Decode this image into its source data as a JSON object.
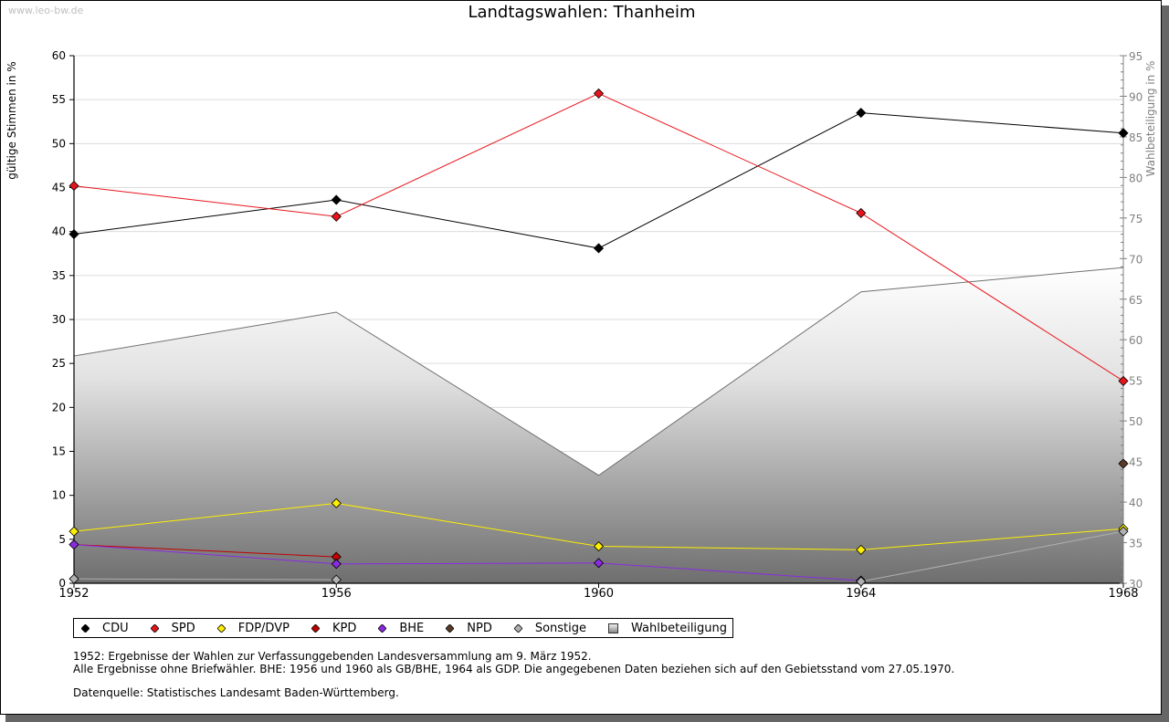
{
  "header": {
    "watermark": "www.leo-bw.de",
    "title": "Landtagswahlen: Thanheim"
  },
  "chart_data": {
    "type": "line",
    "title": "Landtagswahlen: Thanheim",
    "xlabel": "",
    "ylabel": "gültige Stimmen in %",
    "y2label": "Wahlbeteiligung in %",
    "x": [
      "1952",
      "1956",
      "1960",
      "1964",
      "1968"
    ],
    "ylim": [
      0,
      60
    ],
    "yticks": [
      "0",
      "5",
      "10",
      "15",
      "20",
      "25",
      "30",
      "35",
      "40",
      "45",
      "50",
      "55",
      "60"
    ],
    "y2lim": [
      30,
      95
    ],
    "y2ticks": [
      "30",
      "35",
      "40",
      "45",
      "50",
      "55",
      "60",
      "65",
      "70",
      "75",
      "80",
      "85",
      "90",
      "95"
    ],
    "grid": true,
    "legend_position": "bottom-left",
    "series": [
      {
        "name": "CDU",
        "color": "#000000",
        "values": [
          39.7,
          43.6,
          38.1,
          53.5,
          51.2
        ]
      },
      {
        "name": "SPD",
        "color": "#e8141c",
        "values": [
          45.2,
          41.7,
          55.7,
          42.1,
          23.0
        ]
      },
      {
        "name": "FDP/DVP",
        "color": "#ffef00",
        "values": [
          5.9,
          9.1,
          4.2,
          3.8,
          6.2
        ]
      },
      {
        "name": "KPD",
        "color": "#c00000",
        "values": [
          4.4,
          3.0,
          null,
          null,
          null
        ]
      },
      {
        "name": "BHE",
        "color": "#8a2be2",
        "values": [
          4.4,
          2.2,
          2.3,
          0.3,
          null
        ]
      },
      {
        "name": "NPD",
        "color": "#5a3a28",
        "values": [
          null,
          null,
          null,
          null,
          13.6
        ]
      },
      {
        "name": "Sonstige",
        "color": "#b0b0b0",
        "values": [
          0.5,
          0.4,
          null,
          0.2,
          5.9
        ]
      }
    ],
    "turnout": {
      "name": "Wahlbeteiligung",
      "axis": "right",
      "type": "area",
      "values": [
        58.0,
        63.4,
        43.3,
        65.9,
        68.9
      ]
    }
  },
  "notes": {
    "line1": "1952: Ergebnisse der Wahlen zur Verfassunggebenden Landesversammlung am 9. März 1952.",
    "line2": "Alle Ergebnisse ohne Briefwähler. BHE: 1956 und 1960 als GB/BHE, 1964 als GDP. Die angegebenen Daten beziehen sich auf den Gebietsstand vom 27.05.1970.",
    "source": "Datenquelle: Statistisches Landesamt Baden-Württemberg."
  }
}
